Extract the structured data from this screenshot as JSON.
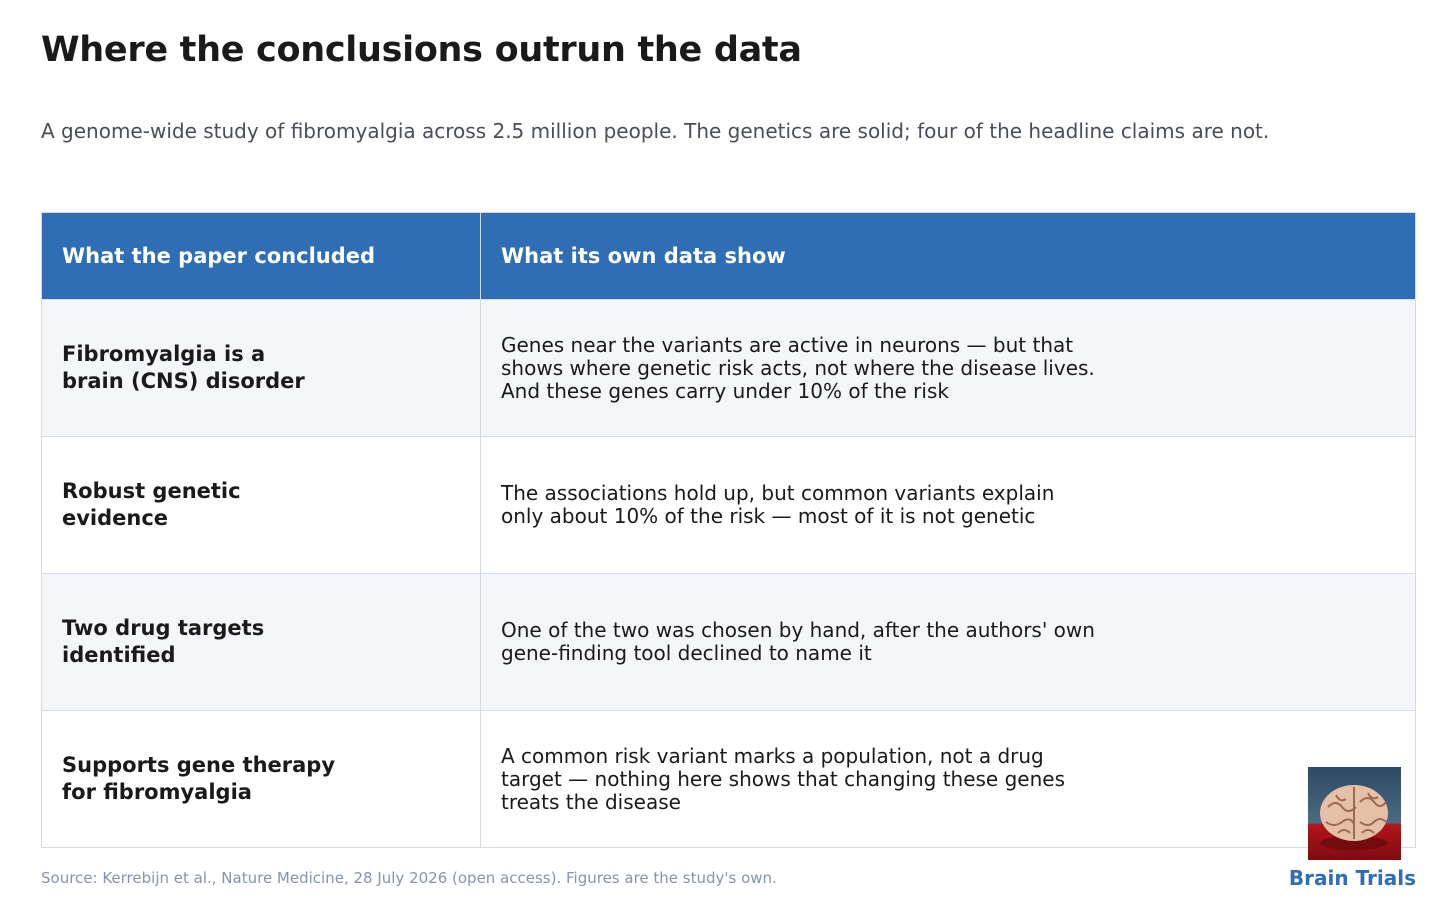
{
  "header": {
    "title": "Where the conclusions outrun the data",
    "subtitle": "A genome-wide study of fibromyalgia across 2.5 million people. The genetics are solid; four of the headline claims are not."
  },
  "table": {
    "columns": [
      "What the paper concluded",
      "What its own data show"
    ],
    "rows": [
      [
        "Fibromyalgia is a\nbrain (CNS) disorder",
        "Genes near the variants are active in neurons — but that shows where genetic risk acts, not where the disease lives. And these genes carry under 10% of the risk"
      ],
      [
        "Robust genetic\nevidence",
        "The associations hold up, but common variants explain only about 10% of the risk — most of it is not genetic"
      ],
      [
        "Two drug targets\nidentified",
        "One of the two was chosen by hand, after the authors' own gene-finding tool declined to name it"
      ],
      [
        "Supports gene therapy\nfor fibromyalgia",
        "A common risk variant marks a population, not a drug target — nothing here shows that changing these genes treats the disease"
      ]
    ]
  },
  "footer": {
    "source": "Source: Kerrebijn et al., Nature Medicine, 28 July 2026 (open access). Figures are the study's own.",
    "brand": "Brain Trials"
  }
}
